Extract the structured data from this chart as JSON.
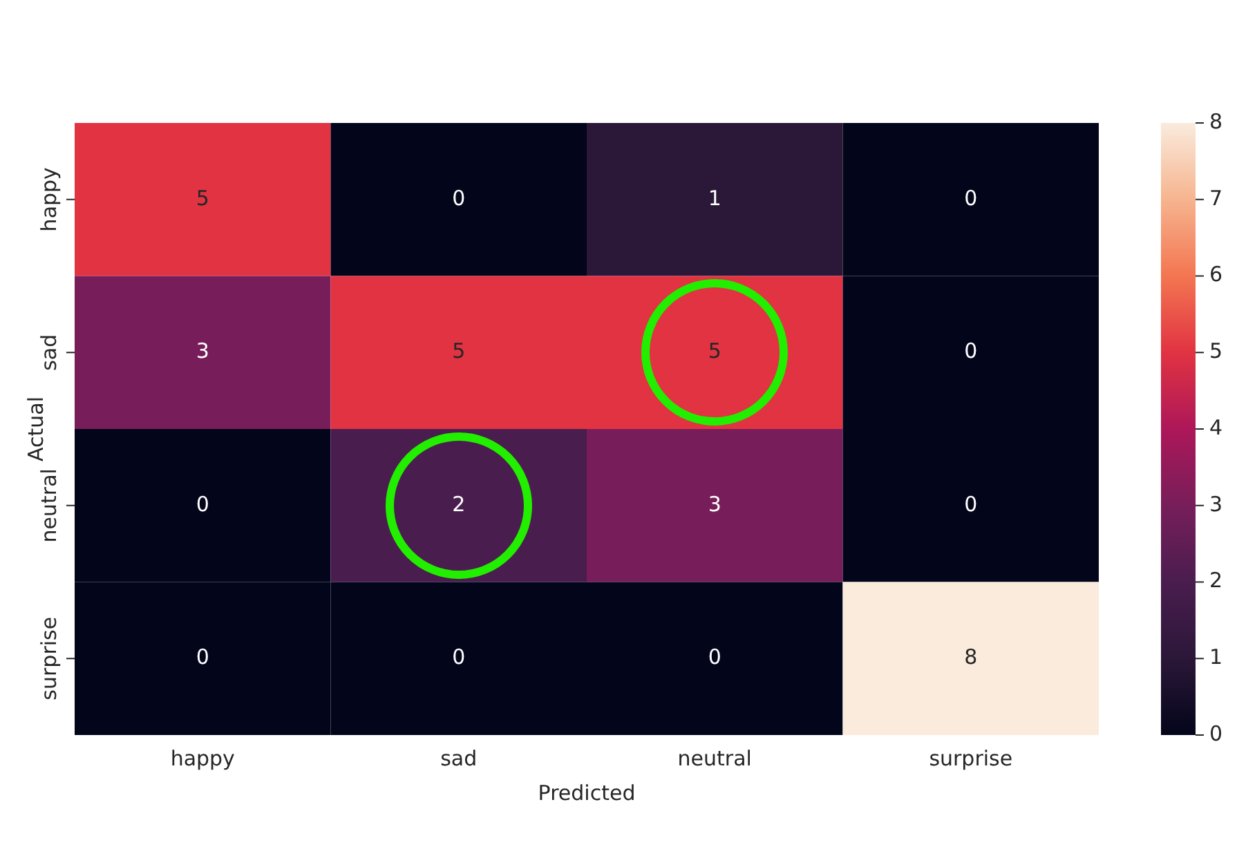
{
  "chart_data": {
    "type": "heatmap",
    "xlabel": "Predicted",
    "ylabel": "Actual",
    "categories": [
      "happy",
      "sad",
      "neutral",
      "surprise"
    ],
    "y_categories": [
      "happy",
      "sad",
      "neutral",
      "surprise"
    ],
    "cells": [
      [
        5,
        0,
        1,
        0
      ],
      [
        3,
        5,
        5,
        0
      ],
      [
        0,
        2,
        3,
        0
      ],
      [
        0,
        0,
        0,
        8
      ]
    ],
    "clim": [
      0,
      8
    ],
    "cticks": [
      0,
      1,
      2,
      3,
      4,
      5,
      6,
      7,
      8
    ],
    "data_labels": true
  }
}
